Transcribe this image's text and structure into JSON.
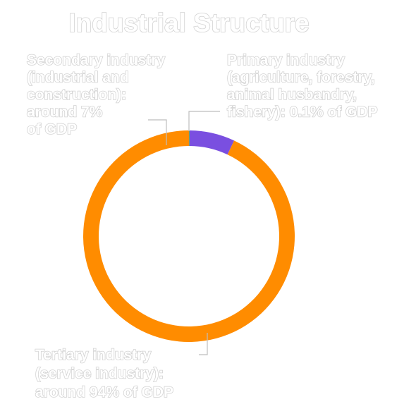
{
  "chart_data": {
    "type": "pie",
    "donut": true,
    "title": "Industrial Structure",
    "categories": [
      "Primary industry",
      "Secondary industry",
      "Tertiary industry"
    ],
    "values": [
      0.1,
      7,
      94
    ],
    "unit": "% of GDP",
    "labels": [
      [
        "Primary industry",
        "(agriculture, forestry,",
        "animal husbandry,",
        "fishery): 0.1% of GDP"
      ],
      [
        "Secondary industry",
        "(industrial and",
        "construction):",
        "around 7%",
        "of GDP"
      ],
      [
        "Tertiary industry",
        "(service industry):",
        "around 94% of GDP"
      ]
    ],
    "colors": [
      "#4caf50",
      "#7a4fe0",
      "#ff8c00"
    ],
    "legend": "none"
  }
}
